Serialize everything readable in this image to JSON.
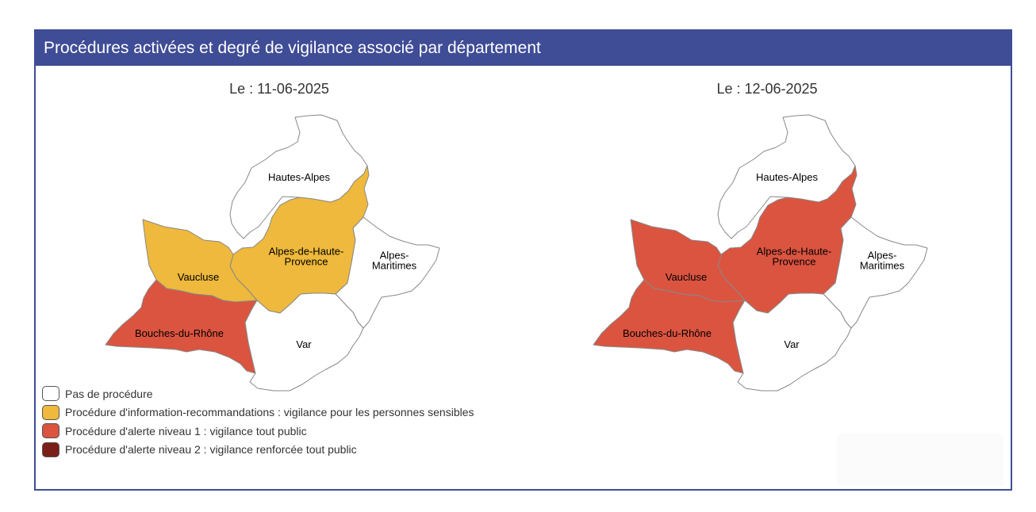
{
  "header": {
    "title": "Procédures activées et degré de vigilance associé par département"
  },
  "legend": {
    "items": [
      {
        "key": "none",
        "label": "Pas de procédure",
        "color": "#ffffff"
      },
      {
        "key": "info",
        "label": "Procédure d'information-recommandations : vigilance pour les personnes sensibles",
        "color": "#eeb93c"
      },
      {
        "key": "alert1",
        "label": "Procédure d'alerte niveau 1 : vigilance tout public",
        "color": "#db5440"
      },
      {
        "key": "alert2",
        "label": "Procédure d'alerte niveau 2 : vigilance renforcée tout public",
        "color": "#7b1f19"
      }
    ]
  },
  "maps": [
    {
      "title": "Le : 11-06-2025",
      "departments": [
        {
          "id": "hautes-alpes",
          "label": "Hautes-Alpes",
          "level": "none"
        },
        {
          "id": "alpes-de-haute-provence",
          "label": "Alpes-de-Haute-Provence",
          "label_lines": [
            "Alpes-de-Haute-",
            "Provence"
          ],
          "level": "info"
        },
        {
          "id": "alpes-maritimes",
          "label": "Alpes-Maritimes",
          "label_lines": [
            "Alpes-",
            "Maritimes"
          ],
          "level": "none"
        },
        {
          "id": "vaucluse",
          "label": "Vaucluse",
          "level": "info"
        },
        {
          "id": "bouches-du-rhone",
          "label": "Bouches-du-Rhône",
          "level": "alert1"
        },
        {
          "id": "var",
          "label": "Var",
          "level": "none"
        }
      ]
    },
    {
      "title": "Le : 12-06-2025",
      "departments": [
        {
          "id": "hautes-alpes",
          "label": "Hautes-Alpes",
          "level": "none"
        },
        {
          "id": "alpes-de-haute-provence",
          "label": "Alpes-de-Haute-Provence",
          "label_lines": [
            "Alpes-de-Haute-",
            "Provence"
          ],
          "level": "alert1"
        },
        {
          "id": "alpes-maritimes",
          "label": "Alpes-Maritimes",
          "label_lines": [
            "Alpes-",
            "Maritimes"
          ],
          "level": "none"
        },
        {
          "id": "vaucluse",
          "label": "Vaucluse",
          "level": "alert1"
        },
        {
          "id": "bouches-du-rhone",
          "label": "Bouches-du-Rhône",
          "level": "alert1"
        },
        {
          "id": "var",
          "label": "Var",
          "level": "none"
        }
      ]
    }
  ]
}
